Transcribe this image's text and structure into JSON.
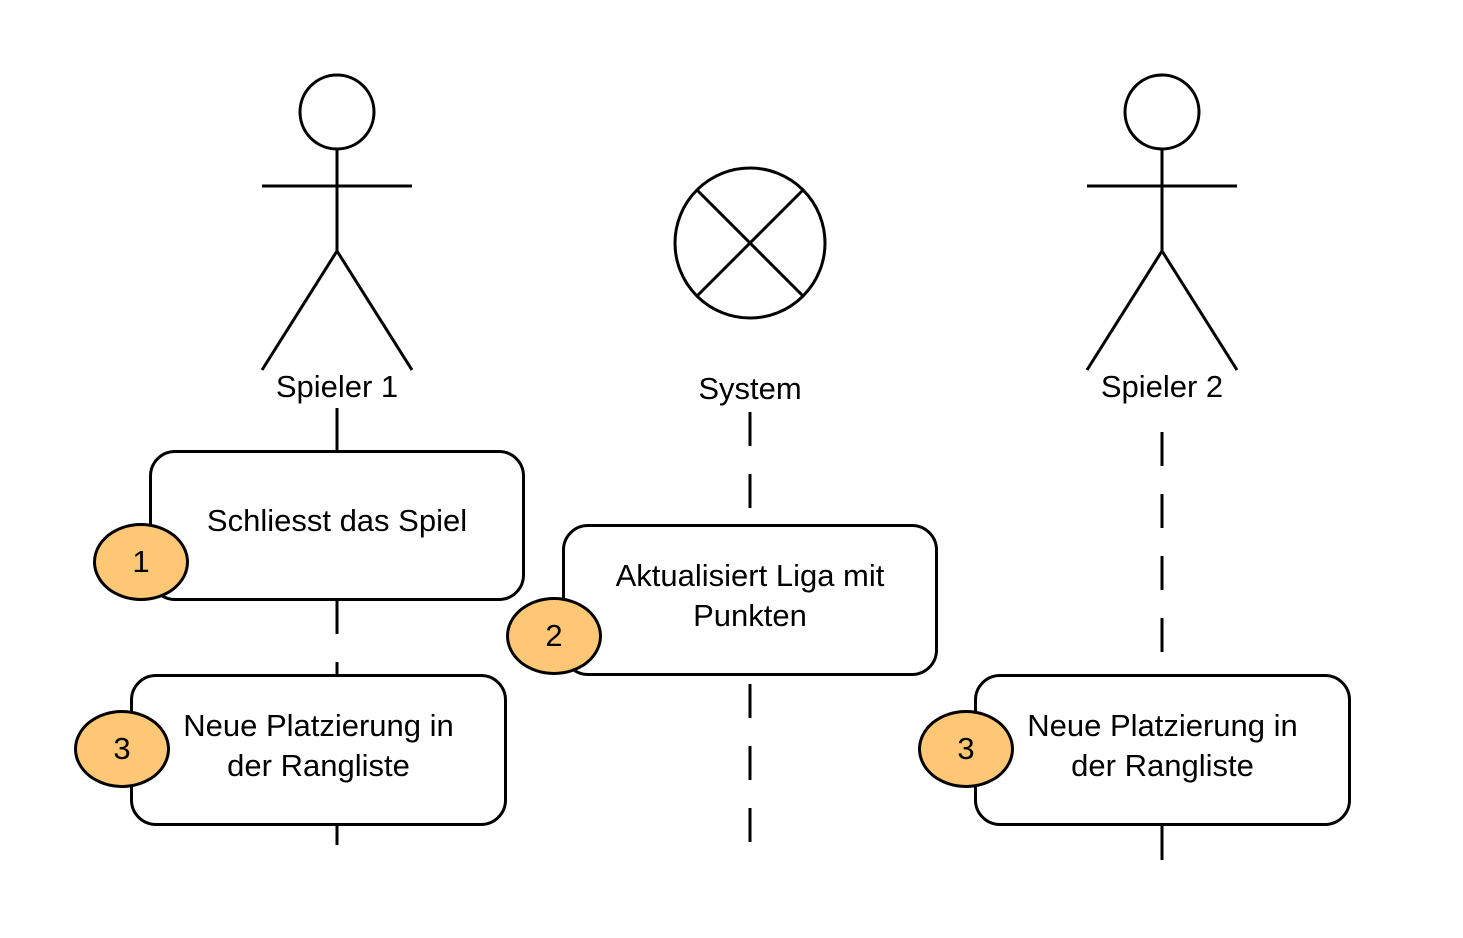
{
  "colors": {
    "stroke": "#000000",
    "background": "#ffffff",
    "badge_fill": "#fdc775"
  },
  "actors": [
    {
      "name": "Spieler 1",
      "icon": "stick-figure-icon"
    },
    {
      "name": "System",
      "icon": "circle-x-icon"
    },
    {
      "name": "Spieler 2",
      "icon": "stick-figure-icon"
    }
  ],
  "steps": [
    {
      "number": "1",
      "text": "Schliesst das Spiel"
    },
    {
      "number": "2",
      "text": "Aktualisiert Liga mit\nPunkten"
    },
    {
      "number": "3",
      "text": "Neue Platzierung in\nder Rangliste"
    },
    {
      "number": "3",
      "text": "Neue Platzierung in\nder Rangliste"
    }
  ]
}
